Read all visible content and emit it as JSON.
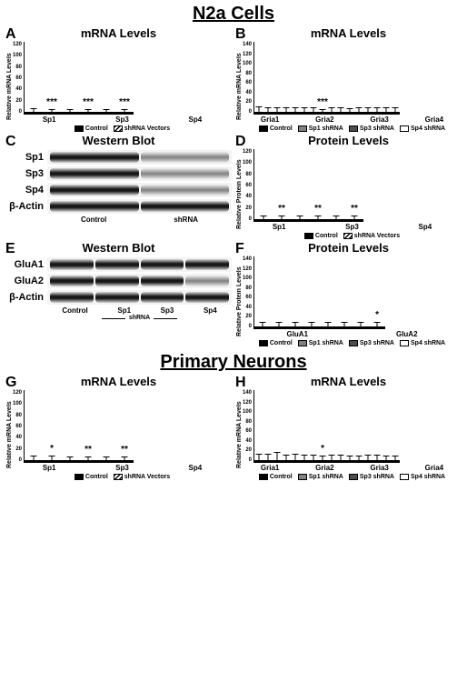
{
  "titles": {
    "main": "N2a Cells",
    "primary": "Primary Neurons"
  },
  "letters": {
    "A": "A",
    "B": "B",
    "C": "C",
    "D": "D",
    "E": "E",
    "F": "F",
    "G": "G",
    "H": "H"
  },
  "chart_titles": {
    "mrna": "mRNA Levels",
    "wb": "Western Blot",
    "protein": "Protein Levels"
  },
  "ylabels": {
    "mrna": "Relative mRNA Levels",
    "protein": "Relative Protein Levels"
  },
  "legends": {
    "two": {
      "control": "Control",
      "shrna": "shRNA Vectors"
    },
    "four": {
      "control": "Control",
      "sp1": "Sp1 shRNA",
      "sp3": "Sp3 shRNA",
      "sp4": "Sp4 shRNA"
    }
  },
  "panelA": {
    "ymax": 120,
    "categories": [
      "Sp1",
      "Sp3",
      "Sp4"
    ],
    "control": [
      100,
      100,
      100
    ],
    "shrna": [
      28,
      32,
      30
    ],
    "err_control": [
      6,
      5,
      5
    ],
    "err_shrna": [
      5,
      5,
      5
    ],
    "sig": [
      "***",
      "***",
      "***"
    ]
  },
  "panelB": {
    "ymax": 140,
    "categories": [
      "Gria1",
      "Gria2",
      "Gria3",
      "Gria4"
    ],
    "data": {
      "control": [
        100,
        100,
        100,
        100
      ],
      "sp1": [
        110,
        105,
        110,
        108
      ],
      "sp3": [
        92,
        108,
        106,
        112
      ],
      "sp4": [
        88,
        38,
        105,
        70
      ]
    },
    "err": {
      "control": [
        10,
        9,
        8,
        9
      ],
      "sp1": [
        9,
        8,
        8,
        9
      ],
      "sp3": [
        9,
        9,
        7,
        8
      ],
      "sp4": [
        9,
        5,
        8,
        9
      ]
    },
    "sig": {
      "sp4": [
        "",
        "***",
        "",
        ""
      ]
    }
  },
  "panelC": {
    "rows": [
      "Sp1",
      "Sp3",
      "Sp4",
      "β-Actin"
    ],
    "lanes": [
      "Control",
      "shRNA"
    ]
  },
  "panelD": {
    "ymax": 120,
    "categories": [
      "Sp1",
      "Sp3",
      "Sp4"
    ],
    "control": [
      100,
      100,
      100
    ],
    "shrna": [
      38,
      42,
      44
    ],
    "err_control": [
      6,
      6,
      6
    ],
    "err_shrna": [
      6,
      6,
      6
    ],
    "sig": [
      "**",
      "**",
      "**"
    ]
  },
  "panelE": {
    "rows": [
      "GluA1",
      "GluA2",
      "β-Actin"
    ],
    "lanes": [
      "Control",
      "Sp1",
      "Sp3",
      "Sp4"
    ],
    "sublabel": "shRNA"
  },
  "panelF": {
    "ymax": 140,
    "categories": [
      "GluA1",
      "GluA2"
    ],
    "data": {
      "control": [
        100,
        100
      ],
      "sp1": [
        108,
        100
      ],
      "sp3": [
        94,
        95
      ],
      "sp4": [
        95,
        55
      ]
    },
    "err": {
      "control": [
        9,
        8
      ],
      "sp1": [
        9,
        8
      ],
      "sp3": [
        9,
        8
      ],
      "sp4": [
        9,
        8
      ]
    },
    "sig": {
      "sp4": [
        "",
        "*"
      ]
    }
  },
  "panelG": {
    "ymax": 120,
    "categories": [
      "Sp1",
      "Sp3",
      "Sp4"
    ],
    "control": [
      100,
      100,
      100
    ],
    "shrna": [
      48,
      42,
      34
    ],
    "err_control": [
      7,
      6,
      6
    ],
    "err_shrna": [
      7,
      6,
      6
    ],
    "sig": [
      "*",
      "**",
      "**"
    ]
  },
  "panelH": {
    "ymax": 140,
    "categories": [
      "Gria1",
      "Gria2",
      "Gria3",
      "Gria4"
    ],
    "data": {
      "control": [
        100,
        100,
        100,
        100
      ],
      "sp1": [
        115,
        98,
        112,
        115
      ],
      "sp3": [
        85,
        94,
        108,
        106
      ],
      "sp4": [
        92,
        48,
        115,
        108
      ]
    },
    "err": {
      "control": [
        12,
        12,
        10,
        10
      ],
      "sp1": [
        12,
        10,
        10,
        10
      ],
      "sp3": [
        15,
        10,
        9,
        9
      ],
      "sp4": [
        10,
        8,
        9,
        9
      ]
    },
    "sig": {
      "sp4": [
        "",
        "*",
        "",
        ""
      ]
    }
  },
  "colors": {
    "black": "#000000",
    "gray1": "#808080",
    "gray2": "#4d4d4d",
    "white": "#ffffff"
  }
}
